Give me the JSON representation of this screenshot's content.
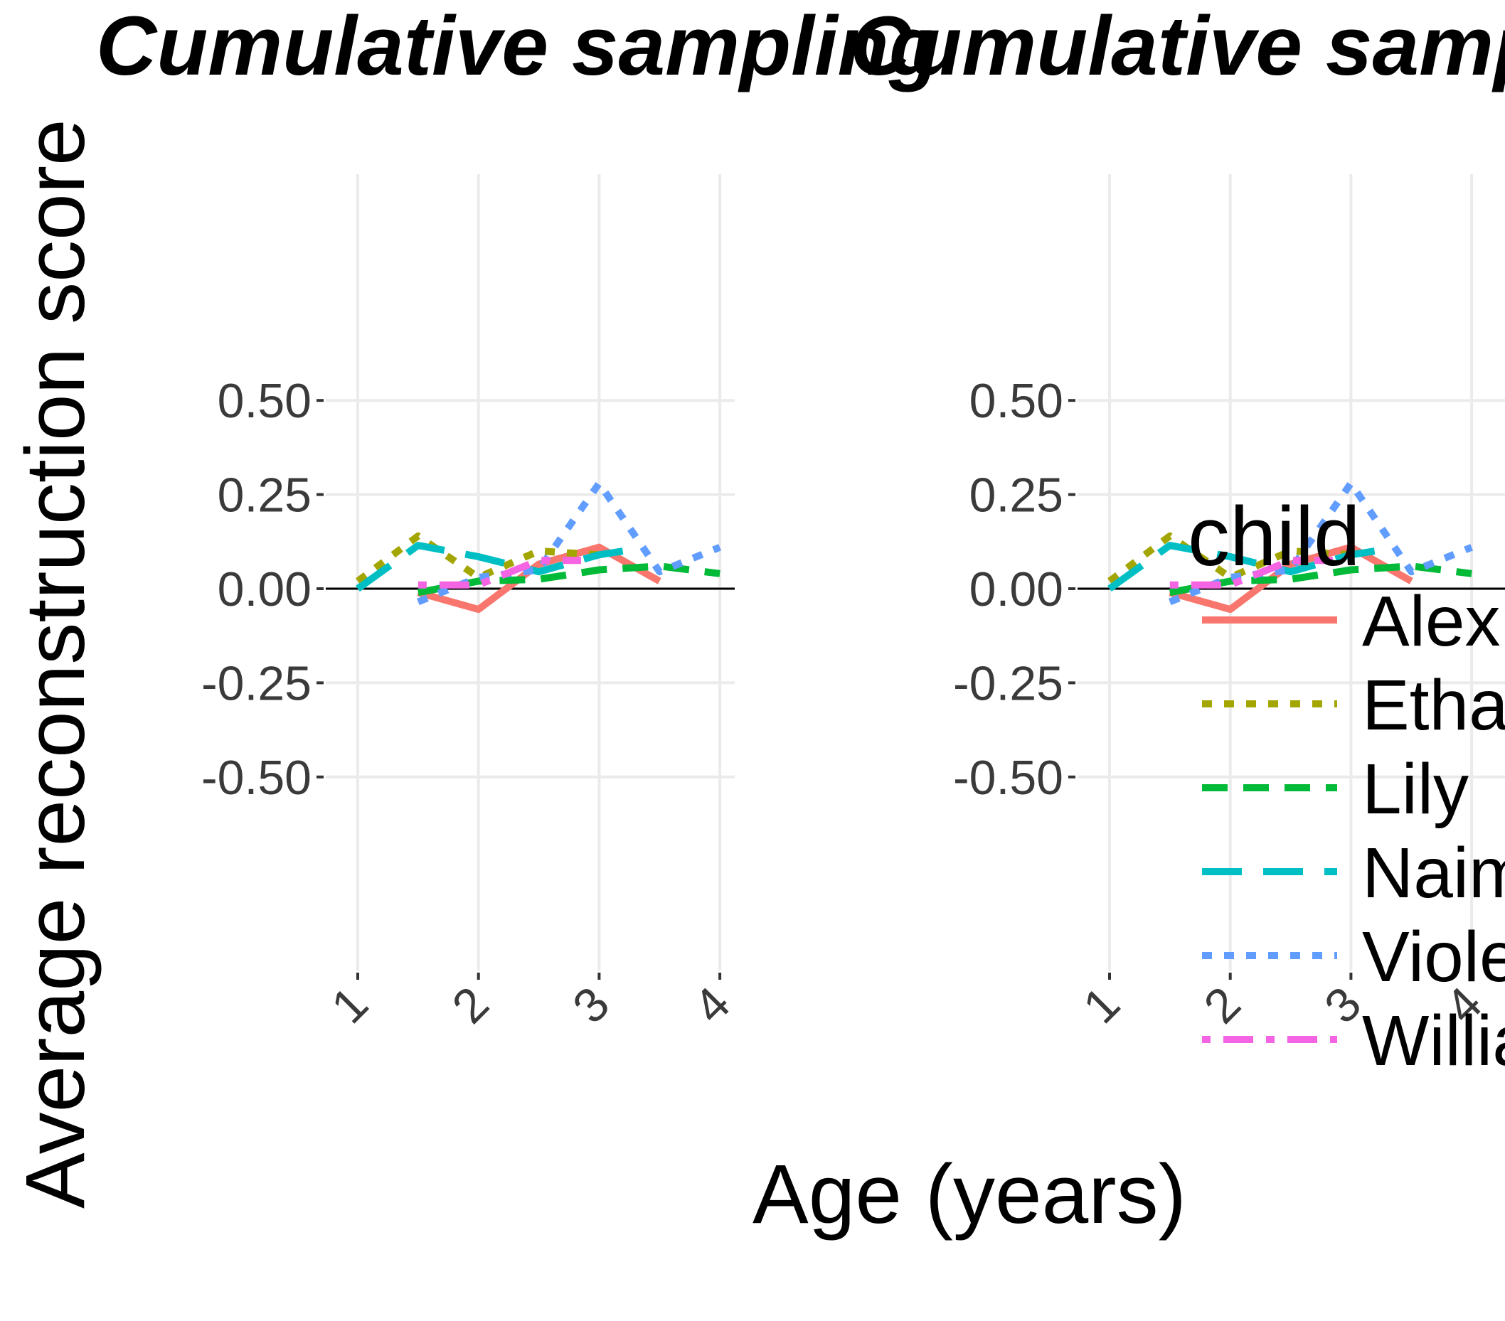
{
  "chart_data": {
    "type": "line",
    "ylabel": "Average reconstruction score",
    "xlabel": "Age (years)",
    "panels": [
      {
        "title": "Cumulative sampling",
        "xticks": [
          "1",
          "2",
          "3",
          "4"
        ],
        "yticks": [
          "0.50",
          "0.25",
          "0.00",
          "-0.25",
          "-0.50"
        ]
      },
      {
        "title": "Cumulative sampling",
        "xticks": [
          "1",
          "2",
          "3",
          "4"
        ],
        "yticks": [
          "0.50",
          "0.25",
          "0.00",
          "-0.25",
          "-0.50"
        ]
      }
    ],
    "xlim": [
      1,
      4
    ],
    "ylim": [
      -0.5,
      0.5
    ],
    "grid": true,
    "reference_line_y": 0,
    "legend": {
      "title": "child",
      "placement": "right"
    },
    "series": [
      {
        "name": "Alex",
        "color": "#F8766D",
        "dash": "solid",
        "x": [
          1.5,
          2.0,
          2.5,
          3.0,
          3.5
        ],
        "y": [
          -0.01,
          -0.055,
          0.065,
          0.11,
          0.02
        ]
      },
      {
        "name": "Ethan",
        "color": "#A3A500",
        "dash": "dotted",
        "x": [
          1.0,
          1.5,
          2.0,
          2.5,
          3.0
        ],
        "y": [
          0.02,
          0.14,
          0.03,
          0.1,
          0.09
        ]
      },
      {
        "name": "Lily",
        "color": "#00BA38",
        "dash": "dashed",
        "x": [
          1.5,
          2.0,
          2.5,
          3.0,
          3.5,
          4.0
        ],
        "y": [
          -0.01,
          0.02,
          0.025,
          0.05,
          0.06,
          0.04
        ]
      },
      {
        "name": "Naima",
        "color": "#00BFC4",
        "dash": "longdash",
        "x": [
          1.0,
          1.5,
          2.0,
          2.5,
          3.0,
          3.3
        ],
        "y": [
          0.0,
          0.115,
          0.085,
          0.045,
          0.09,
          0.105
        ]
      },
      {
        "name": "Violet",
        "color": "#619CFF",
        "dash": "dotted",
        "x": [
          1.5,
          2.0,
          2.5,
          3.0,
          3.5,
          4.0
        ],
        "y": [
          -0.035,
          0.03,
          0.05,
          0.28,
          0.045,
          0.11
        ]
      },
      {
        "name": "William",
        "color": "#F564E3",
        "dash": "dotdash",
        "x": [
          1.5,
          2.0,
          2.5,
          2.85
        ],
        "y": [
          0.01,
          0.01,
          0.075,
          0.075
        ]
      }
    ]
  }
}
